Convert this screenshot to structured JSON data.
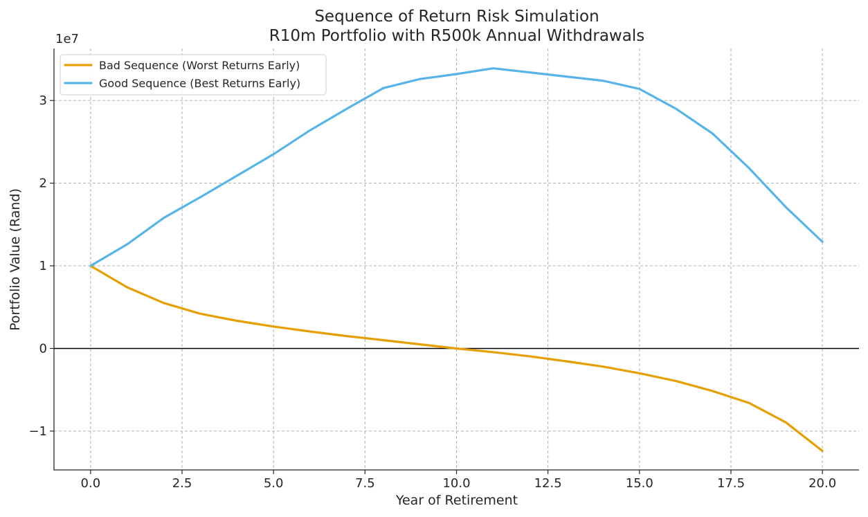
{
  "chart_data": {
    "type": "line",
    "title": [
      "Sequence of Return Risk Simulation",
      "R10m Portfolio with R500k Annual Withdrawals"
    ],
    "xlabel": "Year of Retirement",
    "ylabel": "Portfolio Value (Rand)",
    "y_offset_label": "1e7",
    "xlim": [
      -1,
      21
    ],
    "ylim": [
      -14700000,
      36300000
    ],
    "xticks": [
      0,
      2.5,
      5,
      7.5,
      10,
      12.5,
      15,
      17.5,
      20
    ],
    "xtick_labels": [
      "0.0",
      "2.5",
      "5.0",
      "7.5",
      "10.0",
      "12.5",
      "15.0",
      "17.5",
      "20.0"
    ],
    "yticks": [
      -10000000,
      0,
      10000000,
      20000000,
      30000000
    ],
    "ytick_labels": [
      "−1",
      "0",
      "1",
      "2",
      "3"
    ],
    "grid": true,
    "legend_position": "top-left",
    "zero_line": true,
    "x": [
      0,
      1,
      2,
      3,
      4,
      5,
      6,
      7,
      8,
      9,
      10,
      11,
      12,
      13,
      14,
      15,
      16,
      17,
      18,
      19,
      20
    ],
    "series": [
      {
        "name": "Bad Sequence (Worst Returns Early)",
        "color": "#E69F00",
        "values": [
          10000000,
          7400000,
          5500000,
          4200000,
          3350000,
          2650000,
          2050000,
          1500000,
          1000000,
          500000,
          0,
          -450000,
          -950000,
          -1550000,
          -2200000,
          -3000000,
          -3950000,
          -5150000,
          -6600000,
          -8950000,
          -12400000
        ]
      },
      {
        "name": "Good Sequence (Best Returns Early)",
        "color": "#56B4E9",
        "values": [
          10000000,
          12600000,
          15800000,
          18300000,
          20900000,
          23500000,
          26400000,
          29000000,
          31500000,
          32600000,
          33200000,
          33900000,
          33400000,
          32900000,
          32400000,
          31400000,
          29000000,
          26000000,
          21800000,
          17100000,
          12900000
        ]
      }
    ]
  }
}
